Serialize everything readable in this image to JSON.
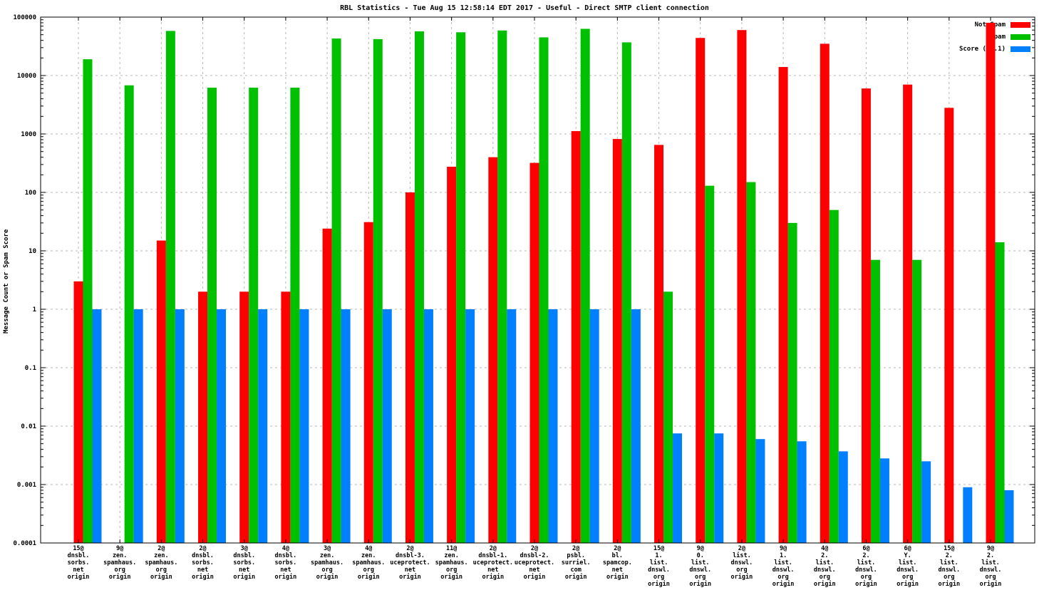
{
  "chart_data": {
    "type": "bar",
    "title": "RBL Statistics - Tue Aug 15 12:58:14 EDT 2017 - Useful - Direct SMTP client connection",
    "xlabel": "",
    "ylabel": "Message Count or Spam Score",
    "yscale": "log",
    "ylim": [
      0.0001,
      100000
    ],
    "ytick_labels": [
      "100000",
      "10000",
      "1000",
      "100",
      "10",
      "1",
      "0.1",
      "0.01",
      "0.001",
      "0.0001"
    ],
    "grid": true,
    "legend_position": "top-right",
    "legend": [
      {
        "name": "Not Spam",
        "color": "#ff0000"
      },
      {
        "name": "Spam",
        "color": "#00c000"
      },
      {
        "name": "Score (0..1)",
        "color": "#0080ff"
      }
    ],
    "categories": [
      [
        "15@",
        "dnsbl.",
        "sorbs.",
        "net",
        "origin"
      ],
      [
        "9@",
        "zen.",
        "spamhaus.",
        "org",
        "origin"
      ],
      [
        "2@",
        "zen.",
        "spamhaus.",
        "org",
        "origin"
      ],
      [
        "2@",
        "dnsbl.",
        "sorbs.",
        "net",
        "origin"
      ],
      [
        "3@",
        "dnsbl.",
        "sorbs.",
        "net",
        "origin"
      ],
      [
        "4@",
        "dnsbl.",
        "sorbs.",
        "net",
        "origin"
      ],
      [
        "3@",
        "zen.",
        "spamhaus.",
        "org",
        "origin"
      ],
      [
        "4@",
        "zen.",
        "spamhaus.",
        "org",
        "origin"
      ],
      [
        "2@",
        "dnsbl-3.",
        "uceprotect.",
        "net",
        "origin"
      ],
      [
        "11@",
        "zen.",
        "spamhaus.",
        "org",
        "origin"
      ],
      [
        "2@",
        "dnsbl-1.",
        "uceprotect.",
        "net",
        "origin"
      ],
      [
        "2@",
        "dnsbl-2.",
        "uceprotect.",
        "net",
        "origin"
      ],
      [
        "2@",
        "psbl.",
        "surriel.",
        "com",
        "origin"
      ],
      [
        "2@",
        "bl.",
        "spamcop.",
        "net",
        "origin"
      ],
      [
        "15@",
        "1.",
        "list.",
        "dnswl.",
        "org",
        "origin"
      ],
      [
        "9@",
        "0.",
        "list.",
        "dnswl.",
        "org",
        "origin"
      ],
      [
        "2@",
        "list.",
        "dnswl.",
        "org",
        "origin"
      ],
      [
        "9@",
        "1.",
        "list.",
        "dnswl.",
        "org",
        "origin"
      ],
      [
        "4@",
        "2.",
        "list.",
        "dnswl.",
        "org",
        "origin"
      ],
      [
        "6@",
        "2.",
        "list.",
        "dnswl.",
        "org",
        "origin"
      ],
      [
        "6@",
        "Y.",
        "list.",
        "dnswl.",
        "org",
        "origin"
      ],
      [
        "15@",
        "2.",
        "list.",
        "dnswl.",
        "org",
        "origin"
      ],
      [
        "9@",
        "2.",
        "list.",
        "dnswl.",
        "org",
        "origin"
      ]
    ],
    "series": [
      {
        "name": "Not Spam",
        "color": "#ff0000",
        "values": [
          3,
          0,
          15,
          2,
          2,
          2,
          24,
          31,
          100,
          275,
          400,
          320,
          1120,
          820,
          650,
          44000,
          60000,
          14000,
          35000,
          6000,
          7000,
          2800,
          80000
        ]
      },
      {
        "name": "Spam",
        "color": "#00c000",
        "values": [
          19000,
          6800,
          58000,
          6200,
          6200,
          6200,
          43000,
          42000,
          57000,
          55000,
          59000,
          45000,
          63000,
          37000,
          2,
          130,
          150,
          30,
          50,
          7,
          7,
          0,
          14
        ]
      },
      {
        "name": "Score (0..1)",
        "color": "#0080ff",
        "values": [
          1,
          1,
          1,
          1,
          1,
          1,
          1,
          1,
          1,
          1,
          1,
          1,
          1,
          1,
          0.0075,
          0.0075,
          0.006,
          0.0055,
          0.0037,
          0.0028,
          0.0025,
          0.0009,
          0.0008
        ]
      }
    ],
    "colors": {
      "axis": "#000000",
      "grid": "#b8b8b8",
      "background": "#ffffff"
    }
  }
}
